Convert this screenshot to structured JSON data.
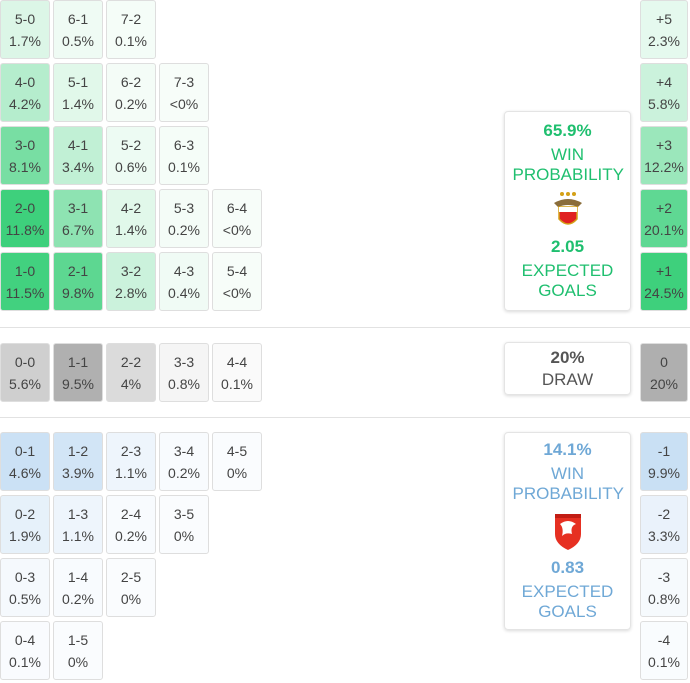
{
  "home": {
    "rows": [
      [
        {
          "score": "5-0",
          "prob": "1.7%"
        },
        {
          "score": "6-1",
          "prob": "0.5%"
        },
        {
          "score": "7-2",
          "prob": "0.1%"
        }
      ],
      [
        {
          "score": "4-0",
          "prob": "4.2%"
        },
        {
          "score": "5-1",
          "prob": "1.4%"
        },
        {
          "score": "6-2",
          "prob": "0.2%"
        },
        {
          "score": "7-3",
          "prob": "<0%"
        }
      ],
      [
        {
          "score": "3-0",
          "prob": "8.1%"
        },
        {
          "score": "4-1",
          "prob": "3.4%"
        },
        {
          "score": "5-2",
          "prob": "0.6%"
        },
        {
          "score": "6-3",
          "prob": "0.1%"
        }
      ],
      [
        {
          "score": "2-0",
          "prob": "11.8%"
        },
        {
          "score": "3-1",
          "prob": "6.7%"
        },
        {
          "score": "4-2",
          "prob": "1.4%"
        },
        {
          "score": "5-3",
          "prob": "0.2%"
        },
        {
          "score": "6-4",
          "prob": "<0%"
        }
      ],
      [
        {
          "score": "1-0",
          "prob": "11.5%"
        },
        {
          "score": "2-1",
          "prob": "9.8%"
        },
        {
          "score": "3-2",
          "prob": "2.8%"
        },
        {
          "score": "4-3",
          "prob": "0.4%"
        },
        {
          "score": "5-4",
          "prob": "<0%"
        }
      ]
    ],
    "margins": [
      {
        "label": "+5",
        "prob": "2.3%"
      },
      {
        "label": "+4",
        "prob": "5.8%"
      },
      {
        "label": "+3",
        "prob": "12.2%"
      },
      {
        "label": "+2",
        "prob": "20.1%"
      },
      {
        "label": "+1",
        "prob": "24.5%"
      }
    ],
    "summary": {
      "probability": "65.9%",
      "probability_label": "WIN PROBABILITY",
      "expected_goals": "2.05",
      "expected_goals_label": "EXPECTED GOALS"
    }
  },
  "draw": {
    "rows": [
      [
        {
          "score": "0-0",
          "prob": "5.6%"
        },
        {
          "score": "1-1",
          "prob": "9.5%"
        },
        {
          "score": "2-2",
          "prob": "4%"
        },
        {
          "score": "3-3",
          "prob": "0.8%"
        },
        {
          "score": "4-4",
          "prob": "0.1%"
        }
      ]
    ],
    "margins": [
      {
        "label": "0",
        "prob": "20%"
      }
    ],
    "summary": {
      "probability": "20%",
      "probability_label": "DRAW"
    }
  },
  "away": {
    "rows": [
      [
        {
          "score": "0-1",
          "prob": "4.6%"
        },
        {
          "score": "1-2",
          "prob": "3.9%"
        },
        {
          "score": "2-3",
          "prob": "1.1%"
        },
        {
          "score": "3-4",
          "prob": "0.2%"
        },
        {
          "score": "4-5",
          "prob": "0%"
        }
      ],
      [
        {
          "score": "0-2",
          "prob": "1.9%"
        },
        {
          "score": "1-3",
          "prob": "1.1%"
        },
        {
          "score": "2-4",
          "prob": "0.2%"
        },
        {
          "score": "3-5",
          "prob": "0%"
        }
      ],
      [
        {
          "score": "0-3",
          "prob": "0.5%"
        },
        {
          "score": "1-4",
          "prob": "0.2%"
        },
        {
          "score": "2-5",
          "prob": "0%"
        }
      ],
      [
        {
          "score": "0-4",
          "prob": "0.1%"
        },
        {
          "score": "1-5",
          "prob": "0%"
        }
      ]
    ],
    "margins": [
      {
        "label": "-1",
        "prob": "9.9%"
      },
      {
        "label": "-2",
        "prob": "3.3%"
      },
      {
        "label": "-3",
        "prob": "0.8%"
      },
      {
        "label": "-4",
        "prob": "0.1%"
      }
    ],
    "summary": {
      "probability": "14.1%",
      "probability_label": "WIN PROBABILITY",
      "expected_goals": "0.83",
      "expected_goals_label": "EXPECTED GOALS"
    }
  }
}
